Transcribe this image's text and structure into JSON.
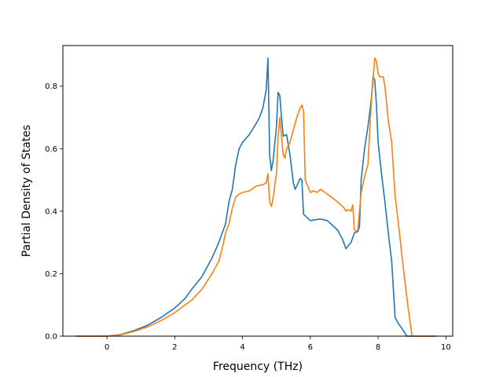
{
  "chart_data": {
    "type": "line",
    "xlabel": "Frequency (THz)",
    "ylabel": "Partial Density of States",
    "xlim": [
      -1.3,
      10.2
    ],
    "ylim": [
      0.0,
      0.93
    ],
    "xticks": [
      0,
      2,
      4,
      6,
      8,
      10
    ],
    "yticks": [
      0.0,
      0.2,
      0.4,
      0.6,
      0.8
    ],
    "xtick_labels": [
      "0",
      "2",
      "4",
      "6",
      "8",
      "10"
    ],
    "ytick_labels": [
      "0.0",
      "0.2",
      "0.4",
      "0.6",
      "0.8"
    ],
    "grid": false,
    "series": [
      {
        "color": "#1f77b4",
        "x": [
          -0.9,
          0.0,
          0.4,
          0.8,
          1.2,
          1.6,
          2.0,
          2.3,
          2.5,
          2.8,
          3.1,
          3.3,
          3.5,
          3.6,
          3.7,
          3.8,
          3.9,
          4.0,
          4.2,
          4.4,
          4.5,
          4.6,
          4.65,
          4.7,
          4.75,
          4.8,
          4.85,
          4.9,
          5.0,
          5.05,
          5.1,
          5.15,
          5.2,
          5.3,
          5.4,
          5.5,
          5.55,
          5.6,
          5.7,
          5.75,
          5.8,
          5.85,
          6.0,
          6.3,
          6.5,
          6.8,
          6.95,
          7.05,
          7.2,
          7.3,
          7.4,
          7.45,
          7.5,
          7.6,
          7.7,
          7.8,
          7.85,
          7.9,
          7.95,
          8.0,
          8.1,
          8.2,
          8.3,
          8.4,
          8.5,
          8.6,
          8.7,
          8.85,
          9.0,
          9.7
        ],
        "y": [
          0.0,
          0.0,
          0.005,
          0.018,
          0.035,
          0.06,
          0.09,
          0.12,
          0.15,
          0.19,
          0.25,
          0.3,
          0.36,
          0.43,
          0.47,
          0.55,
          0.6,
          0.62,
          0.645,
          0.68,
          0.7,
          0.73,
          0.76,
          0.79,
          0.89,
          0.58,
          0.53,
          0.56,
          0.67,
          0.78,
          0.77,
          0.7,
          0.64,
          0.645,
          0.58,
          0.49,
          0.47,
          0.48,
          0.505,
          0.5,
          0.39,
          0.385,
          0.37,
          0.375,
          0.37,
          0.34,
          0.31,
          0.28,
          0.3,
          0.33,
          0.335,
          0.35,
          0.5,
          0.6,
          0.67,
          0.76,
          0.83,
          0.82,
          0.74,
          0.62,
          0.52,
          0.43,
          0.33,
          0.24,
          0.06,
          0.04,
          0.025,
          0.0,
          0.0,
          0.0
        ]
      },
      {
        "color": "#ff7f0e",
        "x": [
          -0.9,
          0.0,
          0.4,
          0.8,
          1.2,
          1.6,
          2.0,
          2.3,
          2.5,
          2.8,
          3.1,
          3.3,
          3.4,
          3.5,
          3.6,
          3.7,
          3.8,
          3.9,
          4.0,
          4.2,
          4.4,
          4.6,
          4.7,
          4.75,
          4.8,
          4.85,
          4.9,
          5.0,
          5.05,
          5.1,
          5.15,
          5.2,
          5.25,
          5.3,
          5.4,
          5.5,
          5.6,
          5.7,
          5.75,
          5.8,
          5.85,
          6.0,
          6.1,
          6.2,
          6.3,
          6.5,
          6.8,
          7.0,
          7.05,
          7.1,
          7.2,
          7.25,
          7.3,
          7.35,
          7.4,
          7.5,
          7.6,
          7.7,
          7.8,
          7.9,
          7.95,
          8.0,
          8.05,
          8.1,
          8.15,
          8.2,
          8.3,
          8.4,
          8.5,
          8.6,
          8.7,
          8.85,
          9.0,
          9.75
        ],
        "y": [
          0.0,
          0.0,
          0.004,
          0.015,
          0.03,
          0.05,
          0.075,
          0.1,
          0.115,
          0.15,
          0.2,
          0.24,
          0.28,
          0.33,
          0.36,
          0.41,
          0.445,
          0.455,
          0.46,
          0.465,
          0.48,
          0.485,
          0.49,
          0.52,
          0.43,
          0.415,
          0.44,
          0.52,
          0.64,
          0.7,
          0.64,
          0.58,
          0.57,
          0.6,
          0.62,
          0.66,
          0.7,
          0.73,
          0.74,
          0.72,
          0.5,
          0.46,
          0.465,
          0.46,
          0.47,
          0.455,
          0.43,
          0.41,
          0.4,
          0.405,
          0.4,
          0.42,
          0.34,
          0.335,
          0.34,
          0.46,
          0.51,
          0.55,
          0.75,
          0.89,
          0.88,
          0.84,
          0.83,
          0.83,
          0.83,
          0.8,
          0.69,
          0.62,
          0.45,
          0.36,
          0.26,
          0.12,
          0.0,
          0.0
        ]
      }
    ]
  }
}
